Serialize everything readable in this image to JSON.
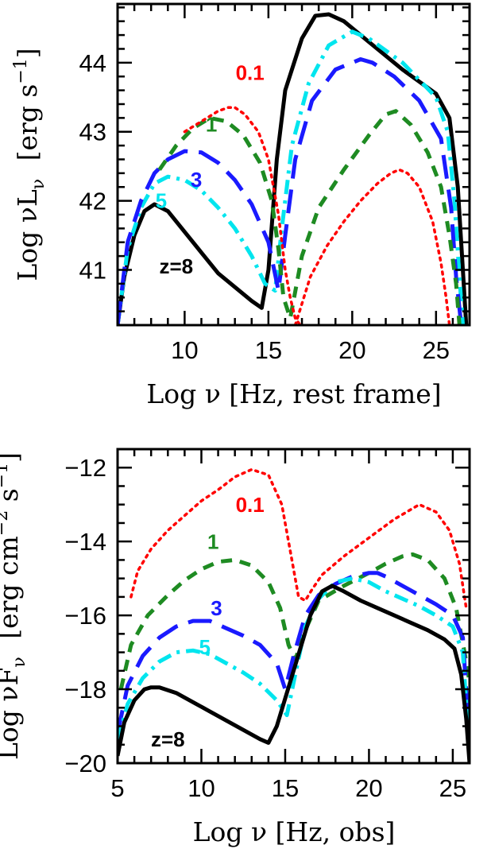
{
  "chart_data": [
    {
      "type": "line",
      "title": "",
      "xlabel": "Log ν [Hz, rest frame]",
      "ylabel": "Log νL_ν [erg s⁻¹]",
      "ylabel_parts": {
        "main": "Log νL",
        "sub": "ν",
        "unit": "[erg s",
        "exp": "−1",
        "close": "]"
      },
      "xlim": [
        6,
        27
      ],
      "ylim": [
        40.2,
        44.85
      ],
      "xticks": [
        10,
        15,
        20,
        25
      ],
      "yticks": [
        41,
        42,
        43,
        44
      ],
      "colors": {
        "0.1": "#ff0000",
        "1": "#1e8b22",
        "3": "#1a1aff",
        "5": "#00e5ee",
        "8": "#000000"
      },
      "curve_labels": [
        {
          "text": "0.1",
          "x": 13.9,
          "y": 43.75,
          "color": "#ff0000"
        },
        {
          "text": "1",
          "x": 11.6,
          "y": 43.0,
          "color": "#1e8b22"
        },
        {
          "text": "3",
          "x": 10.7,
          "y": 42.2,
          "color": "#1a1aff"
        },
        {
          "text": "5",
          "x": 8.6,
          "y": 41.9,
          "color": "#00e5ee"
        },
        {
          "text": "z=8",
          "x": 9.5,
          "y": 40.95,
          "color": "#000000"
        }
      ],
      "series": [
        {
          "z": "8",
          "style": "solid",
          "color": "#000000",
          "width": 5,
          "x": [
            6.0,
            6.4,
            7.0,
            7.6,
            8.2,
            9.0,
            10.0,
            11.0,
            12.0,
            13.0,
            14.0,
            14.6,
            15.0,
            15.5,
            16.0,
            17.0,
            17.8,
            18.6,
            19.5,
            21.0,
            23.0,
            25.0,
            25.8,
            26.3,
            26.6,
            26.8
          ],
          "y": [
            40.2,
            40.9,
            41.5,
            41.85,
            41.95,
            41.85,
            41.55,
            41.25,
            40.95,
            40.75,
            40.55,
            40.45,
            41.0,
            42.6,
            43.6,
            44.35,
            44.68,
            44.7,
            44.6,
            44.3,
            43.9,
            43.55,
            43.2,
            42.2,
            41.0,
            40.2
          ]
        },
        {
          "z": "5",
          "style": "dashdot",
          "color": "#00e5ee",
          "width": 5,
          "x": [
            6.0,
            6.6,
            7.4,
            8.2,
            9.0,
            10.0,
            11.0,
            12.0,
            13.0,
            14.0,
            14.8,
            15.4,
            15.8,
            16.4,
            17.4,
            18.6,
            20.0,
            21.0,
            23.0,
            25.0,
            25.7,
            26.1,
            26.4,
            26.6
          ],
          "y": [
            40.2,
            41.3,
            41.9,
            42.25,
            42.35,
            42.3,
            42.15,
            41.9,
            41.6,
            41.2,
            40.8,
            40.7,
            41.6,
            42.8,
            43.7,
            44.25,
            44.45,
            44.35,
            44.0,
            43.5,
            43.0,
            42.0,
            40.9,
            40.2
          ]
        },
        {
          "z": "3",
          "style": "dashed",
          "color": "#1a1aff",
          "width": 5,
          "x": [
            6.0,
            6.6,
            7.4,
            8.2,
            9.0,
            10.0,
            11.0,
            12.0,
            13.0,
            14.0,
            15.0,
            15.6,
            16.0,
            16.6,
            17.6,
            19.0,
            20.5,
            21.2,
            22.5,
            24.0,
            25.3,
            25.9,
            26.2,
            26.5
          ],
          "y": [
            40.2,
            41.4,
            42.0,
            42.4,
            42.6,
            42.72,
            42.7,
            42.55,
            42.3,
            41.95,
            41.4,
            40.7,
            41.5,
            42.6,
            43.45,
            43.9,
            44.05,
            44.0,
            43.8,
            43.45,
            42.9,
            41.9,
            40.9,
            40.2
          ]
        },
        {
          "z": "1",
          "style": "shortdash",
          "color": "#1e8b22",
          "width": 5,
          "x": [
            8.5,
            9.5,
            10.5,
            11.5,
            12.5,
            13.5,
            14.5,
            15.2,
            15.6,
            15.9,
            16.3,
            17.0,
            18.0,
            19.5,
            21.0,
            22.0,
            22.6,
            23.5,
            24.5,
            25.3,
            25.8,
            26.2,
            26.4
          ],
          "y": [
            42.45,
            42.8,
            43.05,
            43.2,
            43.15,
            42.95,
            42.55,
            42.0,
            41.3,
            40.6,
            40.3,
            41.2,
            41.9,
            42.45,
            42.95,
            43.25,
            43.3,
            43.1,
            42.7,
            42.2,
            41.5,
            40.8,
            40.2
          ]
        },
        {
          "z": "0.1",
          "style": "dotted",
          "color": "#ff0000",
          "width": 3.5,
          "x": [
            10.0,
            11.0,
            12.0,
            12.6,
            13.0,
            13.6,
            14.4,
            15.0,
            15.6,
            16.0,
            16.3,
            16.6,
            16.9
          ],
          "y": [
            43.0,
            43.15,
            43.3,
            43.35,
            43.35,
            43.25,
            43.0,
            42.6,
            41.8,
            41.0,
            40.6,
            40.3,
            40.2
          ]
        },
        {
          "z": "0.1b",
          "style": "dotted",
          "color": "#ff0000",
          "width": 3.5,
          "x": [
            16.6,
            17.5,
            18.5,
            19.5,
            20.5,
            21.5,
            22.3,
            22.8,
            23.3,
            24.0,
            24.8,
            25.3,
            25.6,
            25.8
          ],
          "y": [
            40.2,
            40.9,
            41.35,
            41.7,
            42.0,
            42.25,
            42.4,
            42.45,
            42.4,
            42.2,
            41.7,
            41.1,
            40.6,
            40.2
          ]
        }
      ]
    },
    {
      "type": "line",
      "title": "",
      "xlabel": "Log ν [Hz, obs]",
      "ylabel": "Log νF_ν [erg cm⁻² s⁻¹]",
      "ylabel_parts": {
        "main": "Log νF",
        "sub": "ν",
        "unit": "[erg cm",
        "exp": "−2",
        "unit2": " s",
        "exp2": "−1",
        "close": "]"
      },
      "xlim": [
        5,
        26
      ],
      "ylim": [
        -20,
        -11.5
      ],
      "xticks": [
        5,
        10,
        15,
        20,
        25
      ],
      "yticks": [
        -20,
        -18,
        -16,
        -14,
        -12
      ],
      "ytick_labels": [
        "−20",
        "−18",
        "−16",
        "−14",
        "−12"
      ],
      "colors": {
        "0.1": "#ff0000",
        "1": "#1e8b22",
        "3": "#1a1aff",
        "5": "#00e5ee",
        "8": "#000000"
      },
      "curve_labels": [
        {
          "text": "0.1",
          "x": 12.9,
          "y": -13.2,
          "color": "#ff0000"
        },
        {
          "text": "1",
          "x": 10.7,
          "y": -14.2,
          "color": "#1e8b22"
        },
        {
          "text": "3",
          "x": 10.9,
          "y": -16.0,
          "color": "#1a1aff"
        },
        {
          "text": "5",
          "x": 10.2,
          "y": -17.05,
          "color": "#00e5ee"
        },
        {
          "text": "z=8",
          "x": 8.0,
          "y": -19.55,
          "color": "#000000"
        }
      ],
      "series": [
        {
          "z": "0.1",
          "style": "dotted",
          "color": "#ff0000",
          "width": 3.5,
          "x": [
            5.8,
            6.2,
            7.0,
            8.0,
            9.0,
            10.0,
            11.0,
            12.0,
            13.0,
            14.0,
            14.8,
            15.4,
            15.8,
            16.2,
            16.6,
            17.2,
            18.5,
            20.0,
            21.5,
            23.0,
            24.0,
            24.8,
            25.4,
            25.8
          ],
          "y": [
            -15.5,
            -14.8,
            -14.2,
            -13.7,
            -13.3,
            -12.9,
            -12.6,
            -12.25,
            -12.05,
            -12.2,
            -13.0,
            -14.5,
            -15.5,
            -15.6,
            -15.3,
            -14.9,
            -14.4,
            -13.9,
            -13.4,
            -13.0,
            -13.2,
            -13.7,
            -14.6,
            -15.8
          ]
        },
        {
          "z": "1",
          "style": "shortdash",
          "color": "#1e8b22",
          "width": 5,
          "x": [
            5.2,
            5.8,
            6.8,
            8.0,
            9.0,
            10.0,
            11.0,
            12.0,
            13.0,
            14.0,
            14.7,
            15.2,
            15.6,
            16.2,
            17.0,
            18.5,
            20.0,
            21.0,
            22.0,
            22.6,
            23.5,
            24.5,
            25.2,
            25.7,
            26.0
          ],
          "y": [
            -18.0,
            -16.8,
            -16.0,
            -15.45,
            -15.05,
            -14.75,
            -14.55,
            -14.5,
            -14.65,
            -15.1,
            -15.8,
            -16.8,
            -17.2,
            -16.4,
            -15.6,
            -15.2,
            -14.85,
            -14.6,
            -14.4,
            -14.35,
            -14.5,
            -15.0,
            -15.8,
            -17.0,
            -17.8
          ]
        },
        {
          "z": "3",
          "style": "dashed",
          "color": "#1a1aff",
          "width": 5,
          "x": [
            5.0,
            5.6,
            6.5,
            7.5,
            8.5,
            9.5,
            10.5,
            11.5,
            12.5,
            13.5,
            14.5,
            15.0,
            15.5,
            16.2,
            17.0,
            18.0,
            19.0,
            20.0,
            20.5,
            21.0,
            22.0,
            23.0,
            24.0,
            25.0,
            25.6,
            26.0
          ],
          "y": [
            -19.2,
            -17.9,
            -17.1,
            -16.6,
            -16.3,
            -16.15,
            -16.15,
            -16.35,
            -16.55,
            -16.8,
            -17.3,
            -18.0,
            -17.1,
            -16.0,
            -15.45,
            -15.15,
            -14.95,
            -14.85,
            -14.85,
            -14.95,
            -15.2,
            -15.45,
            -15.7,
            -16.0,
            -16.6,
            -19.5
          ]
        },
        {
          "z": "5",
          "style": "dashdot",
          "color": "#00e5ee",
          "width": 5,
          "x": [
            5.0,
            5.6,
            6.5,
            7.5,
            8.5,
            9.5,
            10.5,
            11.5,
            12.5,
            13.5,
            14.5,
            15.1,
            15.6,
            16.2,
            17.0,
            18.0,
            19.0,
            20.0,
            21.0,
            22.0,
            23.0,
            24.0,
            25.0,
            25.6,
            26.0
          ],
          "y": [
            -19.4,
            -18.4,
            -17.7,
            -17.25,
            -17.0,
            -16.95,
            -17.05,
            -17.3,
            -17.55,
            -17.85,
            -18.3,
            -18.7,
            -17.6,
            -16.3,
            -15.55,
            -15.1,
            -15.0,
            -15.1,
            -15.35,
            -15.55,
            -15.75,
            -16.0,
            -16.3,
            -17.0,
            -19.8
          ]
        },
        {
          "z": "8",
          "style": "solid",
          "color": "#000000",
          "width": 5,
          "x": [
            5.0,
            5.4,
            6.0,
            6.6,
            7.0,
            7.5,
            8.5,
            9.5,
            10.5,
            11.5,
            12.5,
            13.5,
            14.0,
            14.5,
            15.5,
            16.5,
            17.2,
            17.8,
            18.5,
            19.5,
            20.5,
            21.5,
            22.5,
            23.5,
            24.5,
            25.1,
            25.5,
            25.8,
            26.0
          ],
          "y": [
            -19.8,
            -18.9,
            -18.3,
            -18.0,
            -17.95,
            -17.95,
            -18.1,
            -18.35,
            -18.6,
            -18.85,
            -19.1,
            -19.35,
            -19.45,
            -19.0,
            -17.5,
            -16.0,
            -15.35,
            -15.2,
            -15.35,
            -15.6,
            -15.8,
            -16.0,
            -16.2,
            -16.4,
            -16.65,
            -16.9,
            -17.6,
            -18.8,
            -20.0
          ]
        }
      ]
    }
  ]
}
